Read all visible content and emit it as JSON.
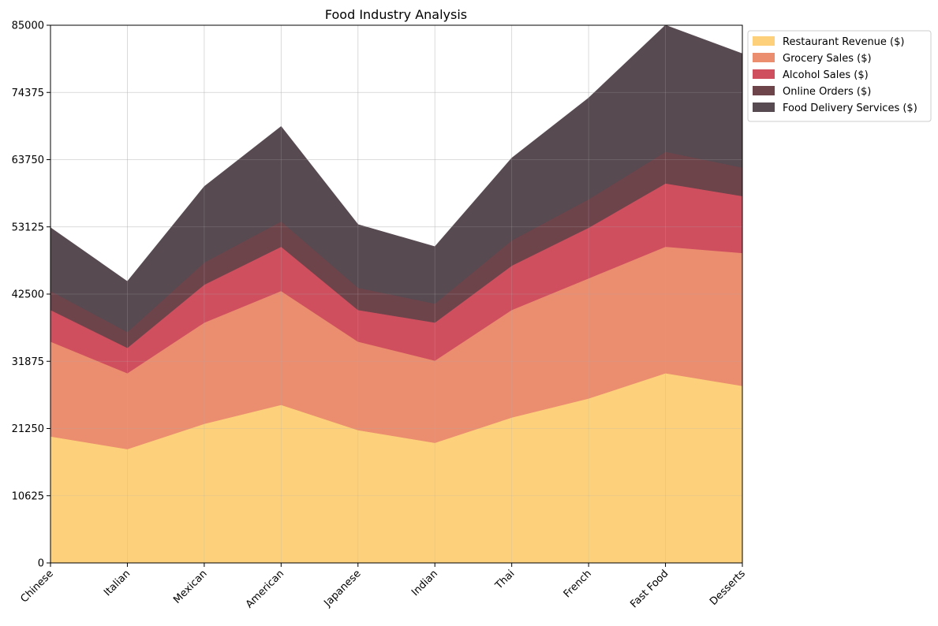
{
  "chart_data": {
    "type": "area",
    "stacked": true,
    "title": "Food Industry Analysis",
    "xlabel": "",
    "ylabel": "",
    "categories": [
      "Chinese",
      "Italian",
      "Mexican",
      "American",
      "Japanese",
      "Indian",
      "Thai",
      "French",
      "Fast Food",
      "Desserts"
    ],
    "ylim": [
      0,
      85000
    ],
    "yticks": [
      "0",
      "10625",
      "21250",
      "31875",
      "42500",
      "53125",
      "63750",
      "74375",
      "85000"
    ],
    "grid": true,
    "legend_position": "upper-right-outside",
    "series": [
      {
        "name": "Restaurant Revenue ($)",
        "color": "#fdd17b",
        "values": [
          20000,
          18000,
          22000,
          25000,
          21000,
          19000,
          23000,
          26000,
          30000,
          28000
        ]
      },
      {
        "name": "Grocery Sales ($)",
        "color": "#eb8d6f",
        "values": [
          15000,
          12000,
          16000,
          18000,
          14000,
          13000,
          17000,
          19000,
          20000,
          21000
        ]
      },
      {
        "name": "Alcohol Sales ($)",
        "color": "#cf4f5f",
        "values": [
          5000,
          4000,
          6000,
          7000,
          5000,
          6000,
          7000,
          8000,
          10000,
          9000
        ]
      },
      {
        "name": "Online Orders ($)",
        "color": "#6e444b",
        "values": [
          3000,
          2500,
          3500,
          4000,
          3500,
          3000,
          4000,
          4500,
          5000,
          4500
        ]
      },
      {
        "name": "Food Delivery Services ($)",
        "color": "#574a51",
        "values": [
          10000,
          8000,
          12000,
          15000,
          10000,
          9000,
          13000,
          16000,
          20000,
          18000
        ]
      }
    ]
  }
}
